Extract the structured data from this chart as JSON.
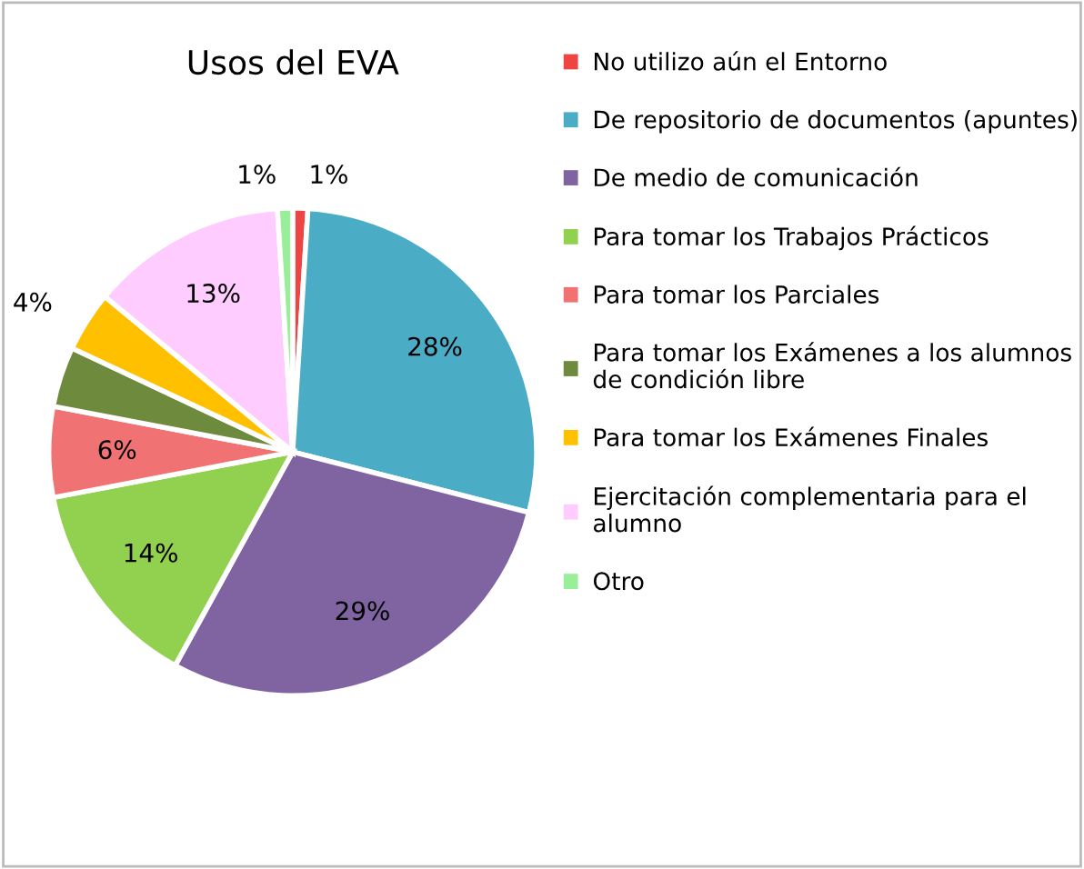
{
  "chart_data": {
    "type": "pie",
    "title": "Usos del EVA",
    "categories": [
      "No utilizo aún el Entorno",
      "De repositorio de documentos (apuntes)",
      "De medio de comunicación",
      "Para tomar los Trabajos Prácticos",
      "Para tomar los Parciales",
      "Para tomar los Exámenes a los alumnos\nde condición libre",
      "Para tomar los Exámenes Finales",
      "Ejercitación complementaria para el\nalumno",
      "Otro"
    ],
    "values": [
      1,
      28,
      29,
      14,
      6,
      4,
      4,
      13,
      1
    ],
    "value_labels": [
      "1%",
      "28%",
      "29%",
      "14%",
      "6%",
      null,
      "4%",
      "13%",
      "1%"
    ],
    "colors": [
      "#ee4444",
      "#4bacc6",
      "#8064a2",
      "#92d050",
      "#f07272",
      "#6e8b3d",
      "#ffc000",
      "#ffccff",
      "#99ee99"
    ],
    "legend": "right"
  }
}
